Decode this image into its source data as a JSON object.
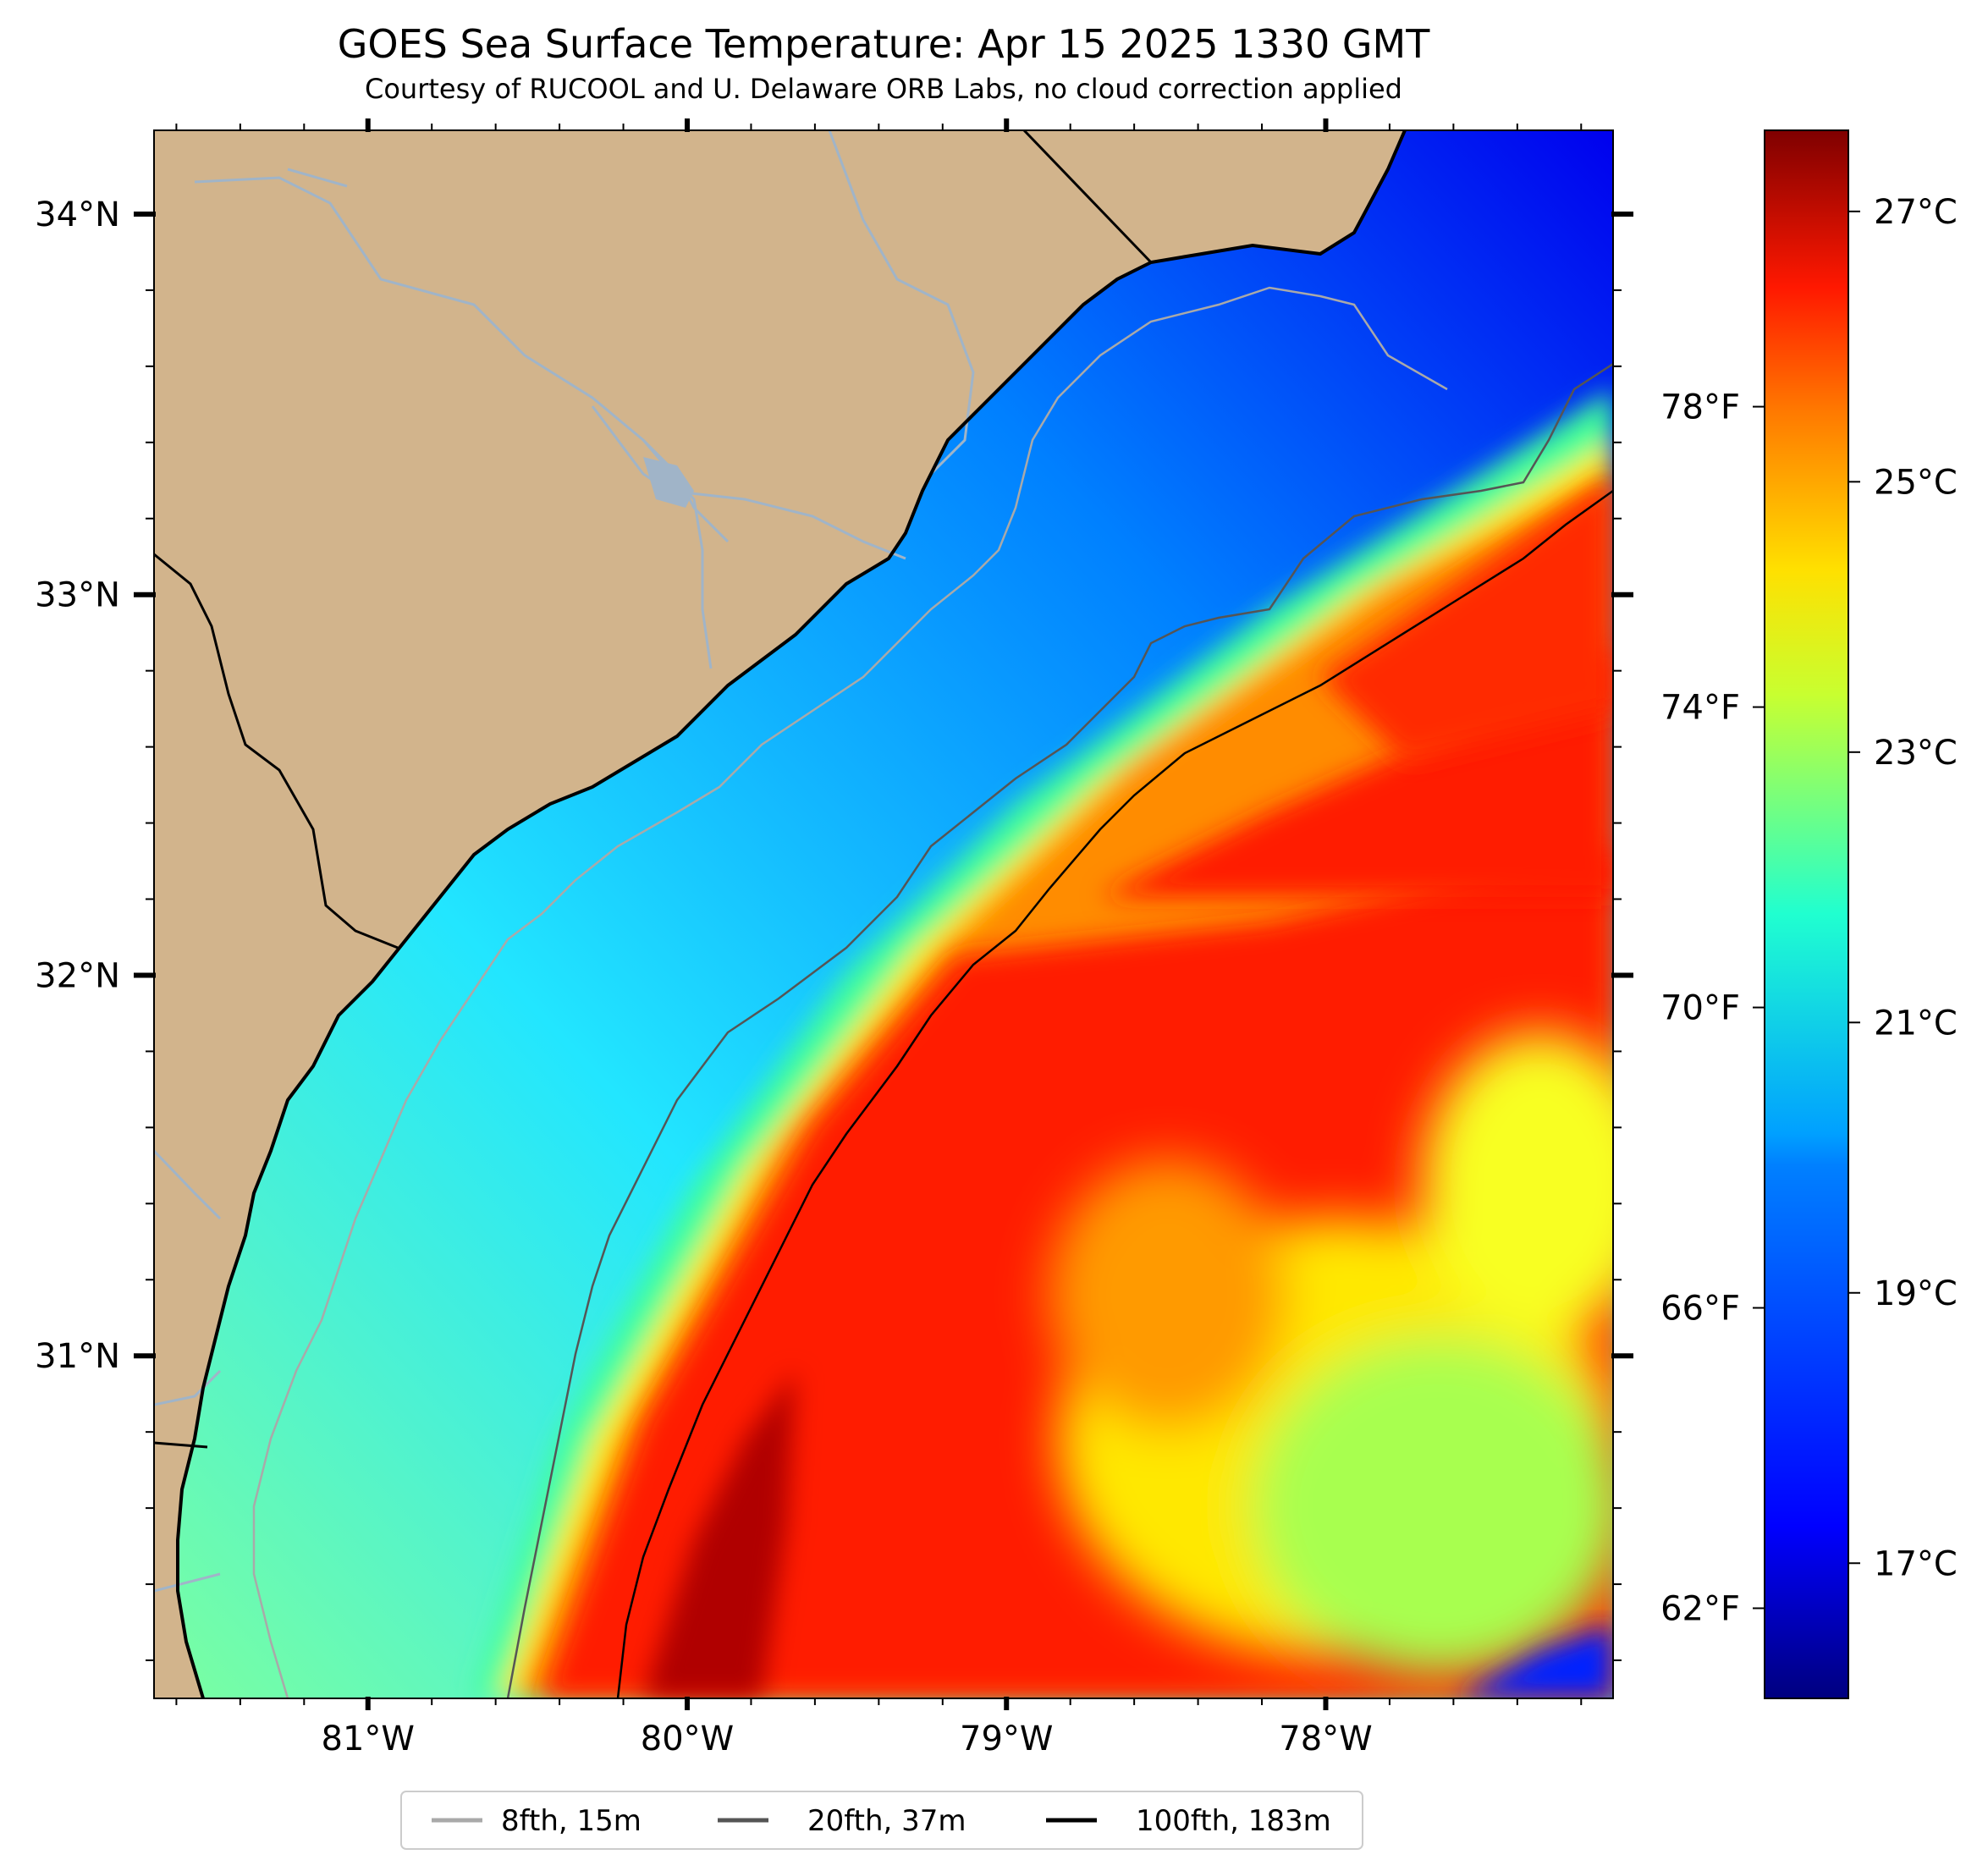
{
  "title": "GOES Sea Surface Temperature: Apr 15 2025 1330 GMT",
  "subtitle": "Courtesy of RUCOOL and U. Delaware ORB Labs, no cloud correction applied",
  "colors": {
    "land": "#d2b48c",
    "river": "#a0b4c8",
    "coast": "#000000",
    "iso_8fth": "#a9a9a9",
    "iso_20fth": "#555555",
    "iso_100fth": "#000000"
  },
  "chart_data": {
    "type": "heatmap",
    "map_extent": {
      "lon": [
        -81.67,
        -77.1
      ],
      "lat": [
        30.1,
        34.22
      ]
    },
    "lon_ticks": [
      {
        "value": -81,
        "label": "81°W"
      },
      {
        "value": -80,
        "label": "80°W"
      },
      {
        "value": -79,
        "label": "79°W"
      },
      {
        "value": -78,
        "label": "78°W"
      }
    ],
    "lat_ticks": [
      {
        "value": 34,
        "label": "34°N"
      },
      {
        "value": 33,
        "label": "33°N"
      },
      {
        "value": 32,
        "label": "32°N"
      },
      {
        "value": 31,
        "label": "31°N"
      }
    ],
    "colorbar": {
      "range_c": [
        16.0,
        27.6
      ],
      "celsius_ticks": [
        {
          "value": 27,
          "label": "27°C"
        },
        {
          "value": 25,
          "label": "25°C"
        },
        {
          "value": 23,
          "label": "23°C"
        },
        {
          "value": 21,
          "label": "21°C"
        },
        {
          "value": 19,
          "label": "19°C"
        },
        {
          "value": 17,
          "label": "17°C"
        }
      ],
      "fahrenheit_ticks": [
        {
          "value": 78,
          "label": "78°F"
        },
        {
          "value": 74,
          "label": "74°F"
        },
        {
          "value": 70,
          "label": "70°F"
        },
        {
          "value": 66,
          "label": "66°F"
        },
        {
          "value": 62,
          "label": "62°F"
        }
      ]
    },
    "legend": {
      "position": "bottom-center",
      "entries": [
        {
          "label": "8fth, 15m",
          "color": "#a9a9a9"
        },
        {
          "label": "20fth, 37m",
          "color": "#555555"
        },
        {
          "label": "100fth, 183m",
          "color": "#000000"
        }
      ]
    }
  }
}
